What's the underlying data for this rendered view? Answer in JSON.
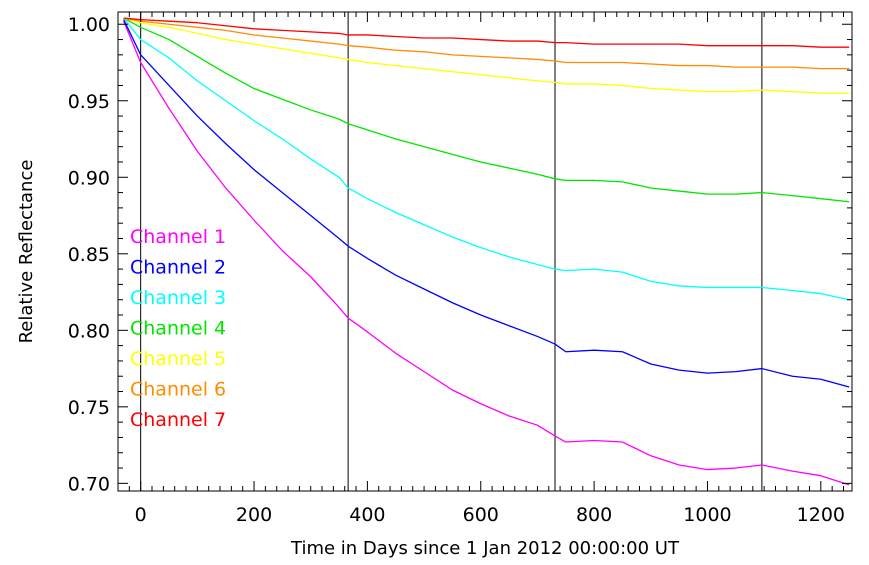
{
  "chart_data": {
    "type": "line",
    "xlabel": "Time in Days since 1 Jan 2012 00:00:00 UT",
    "ylabel": "Relative Reflectance",
    "xlim": [
      -40,
      1255
    ],
    "ylim": [
      0.695,
      1.008
    ],
    "x_ticks": [
      {
        "value": 0,
        "label": "0"
      },
      {
        "value": 200,
        "label": "200"
      },
      {
        "value": 400,
        "label": "400"
      },
      {
        "value": 600,
        "label": "600"
      },
      {
        "value": 800,
        "label": "800"
      },
      {
        "value": 1000,
        "label": "1000"
      },
      {
        "value": 1200,
        "label": "1200"
      }
    ],
    "y_ticks": [
      {
        "value": 0.7,
        "label": "0.70"
      },
      {
        "value": 0.75,
        "label": "0.75"
      },
      {
        "value": 0.8,
        "label": "0.80"
      },
      {
        "value": 0.85,
        "label": "0.85"
      },
      {
        "value": 0.9,
        "label": "0.90"
      },
      {
        "value": 0.95,
        "label": "0.95"
      },
      {
        "value": 1.0,
        "label": "1.00"
      }
    ],
    "vertical_lines": [
      0,
      366,
      731,
      1096
    ],
    "legend_position": "left",
    "series": [
      {
        "name": "Channel 1",
        "color": "#ff00ff",
        "x": [
          -30,
          0,
          50,
          100,
          150,
          200,
          250,
          300,
          350,
          366,
          400,
          450,
          500,
          550,
          600,
          650,
          700,
          731,
          750,
          800,
          850,
          900,
          950,
          1000,
          1050,
          1096,
          1150,
          1200,
          1250
        ],
        "y": [
          1.002,
          0.975,
          0.945,
          0.917,
          0.893,
          0.872,
          0.852,
          0.835,
          0.815,
          0.808,
          0.799,
          0.785,
          0.773,
          0.761,
          0.752,
          0.744,
          0.738,
          0.731,
          0.727,
          0.728,
          0.727,
          0.718,
          0.712,
          0.709,
          0.71,
          0.712,
          0.708,
          0.705,
          0.699
        ]
      },
      {
        "name": "Channel 2",
        "color": "#0000ff",
        "x": [
          -30,
          0,
          50,
          100,
          150,
          200,
          250,
          300,
          350,
          366,
          400,
          450,
          500,
          550,
          600,
          650,
          700,
          731,
          750,
          800,
          850,
          900,
          950,
          1000,
          1050,
          1096,
          1150,
          1200,
          1250
        ],
        "y": [
          1.003,
          0.98,
          0.96,
          0.94,
          0.922,
          0.905,
          0.89,
          0.875,
          0.86,
          0.855,
          0.847,
          0.836,
          0.827,
          0.818,
          0.81,
          0.803,
          0.796,
          0.791,
          0.786,
          0.787,
          0.786,
          0.778,
          0.774,
          0.772,
          0.773,
          0.775,
          0.77,
          0.768,
          0.763
        ]
      },
      {
        "name": "Channel 3",
        "color": "#00ffff",
        "x": [
          -30,
          0,
          50,
          100,
          150,
          200,
          250,
          300,
          350,
          366,
          400,
          450,
          500,
          550,
          600,
          650,
          700,
          731,
          750,
          800,
          850,
          900,
          950,
          1000,
          1050,
          1096,
          1150,
          1200,
          1250
        ],
        "y": [
          1.004,
          0.99,
          0.978,
          0.963,
          0.95,
          0.937,
          0.925,
          0.912,
          0.9,
          0.893,
          0.886,
          0.877,
          0.869,
          0.861,
          0.854,
          0.848,
          0.843,
          0.84,
          0.839,
          0.84,
          0.838,
          0.832,
          0.829,
          0.828,
          0.828,
          0.828,
          0.826,
          0.824,
          0.82
        ]
      },
      {
        "name": "Channel 4",
        "color": "#00e600",
        "x": [
          -30,
          0,
          50,
          100,
          150,
          200,
          250,
          300,
          350,
          366,
          400,
          450,
          500,
          550,
          600,
          650,
          700,
          731,
          750,
          800,
          850,
          900,
          950,
          1000,
          1050,
          1096,
          1150,
          1200,
          1250
        ],
        "y": [
          1.004,
          0.998,
          0.99,
          0.979,
          0.968,
          0.958,
          0.951,
          0.944,
          0.938,
          0.935,
          0.931,
          0.925,
          0.92,
          0.915,
          0.91,
          0.906,
          0.902,
          0.899,
          0.898,
          0.898,
          0.897,
          0.893,
          0.891,
          0.889,
          0.889,
          0.89,
          0.888,
          0.886,
          0.884
        ]
      },
      {
        "name": "Channel 5",
        "color": "#ffff00",
        "x": [
          -30,
          0,
          50,
          100,
          150,
          200,
          250,
          300,
          350,
          366,
          400,
          450,
          500,
          550,
          600,
          650,
          700,
          731,
          750,
          800,
          850,
          900,
          950,
          1000,
          1050,
          1096,
          1150,
          1200,
          1250
        ],
        "y": [
          1.004,
          1.001,
          0.998,
          0.994,
          0.99,
          0.987,
          0.984,
          0.981,
          0.978,
          0.977,
          0.975,
          0.973,
          0.971,
          0.969,
          0.967,
          0.965,
          0.963,
          0.962,
          0.961,
          0.961,
          0.96,
          0.958,
          0.957,
          0.956,
          0.956,
          0.957,
          0.956,
          0.955,
          0.955
        ]
      },
      {
        "name": "Channel 6",
        "color": "#ff8c00",
        "x": [
          -30,
          0,
          50,
          100,
          150,
          200,
          250,
          300,
          350,
          366,
          400,
          450,
          500,
          550,
          600,
          650,
          700,
          731,
          750,
          800,
          850,
          900,
          950,
          1000,
          1050,
          1096,
          1150,
          1200,
          1250
        ],
        "y": [
          1.004,
          1.002,
          1.0,
          0.998,
          0.996,
          0.993,
          0.991,
          0.989,
          0.987,
          0.986,
          0.985,
          0.983,
          0.982,
          0.98,
          0.979,
          0.978,
          0.977,
          0.976,
          0.975,
          0.975,
          0.975,
          0.974,
          0.973,
          0.973,
          0.972,
          0.972,
          0.972,
          0.971,
          0.971
        ]
      },
      {
        "name": "Channel 7",
        "color": "#ff0000",
        "x": [
          -30,
          0,
          50,
          100,
          150,
          200,
          250,
          300,
          350,
          366,
          400,
          450,
          500,
          550,
          600,
          650,
          700,
          731,
          750,
          800,
          850,
          900,
          950,
          1000,
          1050,
          1096,
          1150,
          1200,
          1250
        ],
        "y": [
          1.004,
          1.003,
          1.002,
          1.001,
          0.999,
          0.997,
          0.996,
          0.995,
          0.994,
          0.993,
          0.993,
          0.992,
          0.991,
          0.991,
          0.99,
          0.989,
          0.989,
          0.988,
          0.988,
          0.987,
          0.987,
          0.987,
          0.987,
          0.986,
          0.986,
          0.986,
          0.986,
          0.985,
          0.985
        ]
      }
    ]
  }
}
